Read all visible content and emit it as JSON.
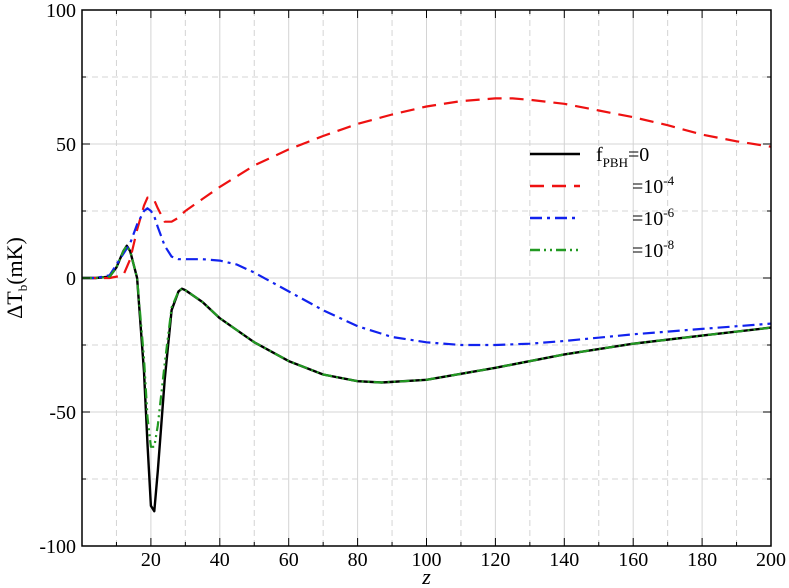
{
  "chart_data": {
    "type": "line",
    "xlabel": "z",
    "ylabel": "ΔT",
    "ylabel_sub": "b",
    "ylabel_unit": "(mK)",
    "xlim": [
      0,
      200
    ],
    "ylim": [
      -100,
      100
    ],
    "xticks": [
      20,
      40,
      60,
      80,
      100,
      120,
      140,
      160,
      180,
      200
    ],
    "yticks": [
      -100,
      -50,
      0,
      50,
      100
    ],
    "grid": true,
    "legend_position": "right-center",
    "series": [
      {
        "legend_main": "f",
        "legend_sub": "PBH",
        "legend_rest": "=0",
        "legend_sup": "",
        "color": "#000000",
        "dash": "solid",
        "x": [
          0,
          4,
          8,
          10,
          12,
          13,
          14,
          16,
          18,
          19,
          20,
          21,
          22,
          24,
          26,
          28,
          29,
          30,
          35,
          40,
          50,
          60,
          70,
          80,
          87,
          100,
          120,
          140,
          160,
          180,
          200
        ],
        "y": [
          0,
          0,
          0.5,
          4,
          10,
          12,
          10,
          0,
          -35,
          -62,
          -85,
          -87,
          -72,
          -38,
          -12,
          -5,
          -4,
          -4.5,
          -9,
          -15,
          -24,
          -31,
          -36,
          -38.5,
          -39,
          -38,
          -33.5,
          -28.5,
          -24.5,
          -21.5,
          -18.5
        ]
      },
      {
        "legend_main": "",
        "legend_sub": "",
        "legend_rest": "=10",
        "legend_sup": "-4",
        "color": "#ee1111",
        "dash": "long-dash",
        "x": [
          0,
          8,
          12,
          14,
          16,
          18,
          19,
          20,
          21,
          22,
          24,
          26,
          28,
          30,
          35,
          40,
          50,
          60,
          70,
          80,
          90,
          100,
          110,
          120,
          125,
          130,
          140,
          150,
          160,
          170,
          180,
          190,
          200
        ],
        "y": [
          0,
          0,
          1,
          7,
          18,
          27,
          30,
          30,
          29,
          26,
          21,
          21,
          22.5,
          25,
          29.5,
          34,
          42,
          48,
          53,
          57.5,
          61,
          64,
          66,
          67,
          67,
          66.5,
          65,
          62.5,
          60,
          57,
          53.5,
          51,
          49
        ]
      },
      {
        "legend_main": "",
        "legend_sub": "",
        "legend_rest": "=10",
        "legend_sup": "-6",
        "color": "#1122ee",
        "dash": "dash-dot",
        "x": [
          0,
          4,
          8,
          12,
          14,
          16,
          18,
          19,
          20,
          21,
          22,
          24,
          26,
          28,
          30,
          35,
          40,
          45,
          50,
          60,
          70,
          80,
          90,
          100,
          110,
          120,
          130,
          140,
          160,
          180,
          200
        ],
        "y": [
          0,
          0,
          1,
          9,
          13,
          20,
          25,
          26,
          25,
          23,
          19,
          12,
          8,
          7,
          7,
          7,
          6.5,
          5,
          2,
          -5,
          -12,
          -18,
          -22,
          -24,
          -25,
          -25,
          -24.5,
          -23.5,
          -21,
          -19,
          -17
        ]
      },
      {
        "legend_main": "",
        "legend_sub": "",
        "legend_rest": "=10",
        "legend_sup": "-8",
        "color": "#229922",
        "dash": "dash-dot-dot",
        "x": [
          0,
          4,
          8,
          10,
          12,
          13,
          14,
          16,
          18,
          19,
          20,
          21,
          22,
          24,
          26,
          28,
          29,
          30,
          35,
          40,
          50,
          60,
          70,
          80,
          87,
          100,
          120,
          140,
          160,
          180,
          200
        ],
        "y": [
          0,
          0,
          0.5,
          4,
          10,
          12,
          10,
          0,
          -30,
          -52,
          -63,
          -63,
          -55,
          -32,
          -11,
          -5,
          -4,
          -4.5,
          -9,
          -15,
          -24,
          -31,
          -36,
          -38.5,
          -39,
          -38,
          -33.5,
          -28.5,
          -24.5,
          -21.5,
          -18.5
        ]
      }
    ]
  }
}
